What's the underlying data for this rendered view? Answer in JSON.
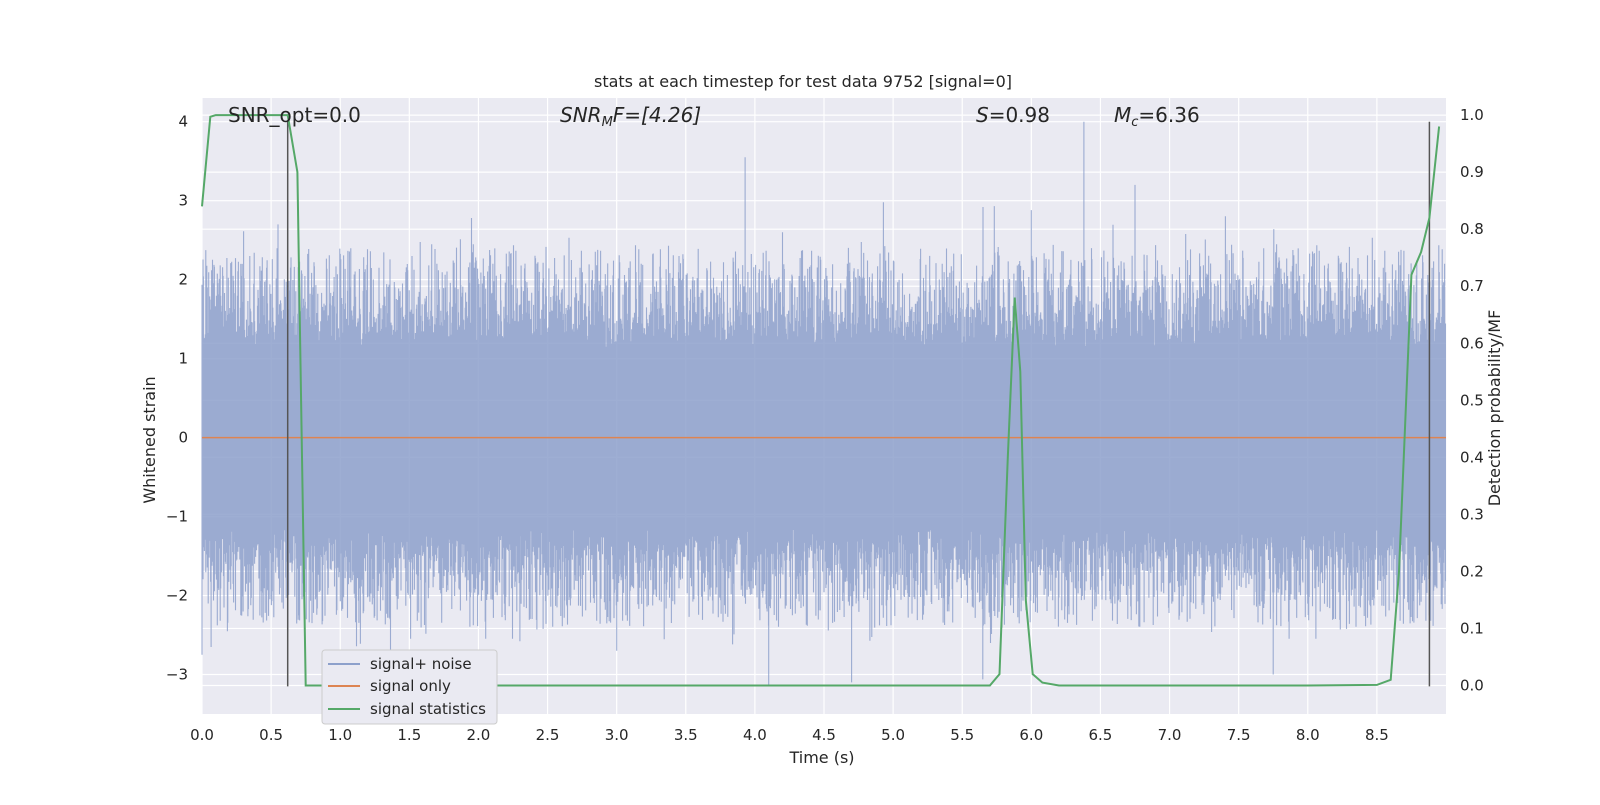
{
  "chart_data": {
    "type": "line",
    "title": "stats at each timestep for test data 9752 [signal=0]",
    "xlabel": "Time (s)",
    "ylabel_left": "Whitened strain",
    "ylabel_right": "Detection probability/MF",
    "xlim": [
      0.0,
      9.0
    ],
    "ylim_left": [
      -3.5,
      4.3
    ],
    "ylim_right": [
      -0.05,
      1.03
    ],
    "x_ticks": [
      "0.0",
      "0.5",
      "1.0",
      "1.5",
      "2.0",
      "2.5",
      "3.0",
      "3.5",
      "4.0",
      "4.5",
      "5.0",
      "5.5",
      "6.0",
      "6.5",
      "7.0",
      "7.5",
      "8.0",
      "8.5"
    ],
    "x_tick_values": [
      0.0,
      0.5,
      1.0,
      1.5,
      2.0,
      2.5,
      3.0,
      3.5,
      4.0,
      4.5,
      5.0,
      5.5,
      6.0,
      6.5,
      7.0,
      7.5,
      8.0,
      8.5
    ],
    "y_ticks_left": [
      "4",
      "3",
      "2",
      "1",
      "0",
      "−1",
      "−2",
      "−3"
    ],
    "y_tick_values_left": [
      4,
      3,
      2,
      1,
      0,
      -1,
      -2,
      -3
    ],
    "y_ticks_right": [
      "1.0",
      "0.9",
      "0.8",
      "0.7",
      "0.6",
      "0.5",
      "0.4",
      "0.3",
      "0.2",
      "0.1",
      "0.0"
    ],
    "y_tick_values_right": [
      1.0,
      0.9,
      0.8,
      0.7,
      0.6,
      0.5,
      0.4,
      0.3,
      0.2,
      0.1,
      0.0
    ],
    "grid": true,
    "legend_position": "lower-left",
    "annotations": {
      "snr_opt": "SNR_opt=0.0",
      "snr_mf_main": "SNR",
      "snr_mf_sub": "M",
      "snr_mf_rest": "F=[4.26]",
      "s_main": "S",
      "s_rest": "=0.98",
      "mc_main": "M",
      "mc_sub": "c",
      "mc_rest": "=6.36"
    },
    "vlines": [
      0.62,
      8.88
    ],
    "series": [
      {
        "name": "signal+ noise",
        "axis": "left",
        "color": "#8da0cb",
        "note_style": "dense noise, approx amplitude",
        "spikes": [
          {
            "x": 0.0,
            "y": -2.75
          },
          {
            "x": 0.55,
            "y": 2.7
          },
          {
            "x": 0.62,
            "y": -2.45
          },
          {
            "x": 1.95,
            "y": 2.78
          },
          {
            "x": 2.3,
            "y": -2.58
          },
          {
            "x": 3.0,
            "y": -2.7
          },
          {
            "x": 4.1,
            "y": -3.15
          },
          {
            "x": 4.2,
            "y": 2.6
          },
          {
            "x": 4.7,
            "y": -3.1
          },
          {
            "x": 4.93,
            "y": 2.98
          },
          {
            "x": 5.65,
            "y": 2.92
          },
          {
            "x": 6.0,
            "y": 2.88
          },
          {
            "x": 6.38,
            "y": 4.0
          },
          {
            "x": 6.75,
            "y": 3.2
          },
          {
            "x": 7.75,
            "y": -3.0
          },
          {
            "x": 8.8,
            "y": -1.35
          }
        ]
      },
      {
        "name": "signal only",
        "axis": "left",
        "color": "#dd8452",
        "x": [
          0.0,
          9.0
        ],
        "y": [
          0.0,
          0.0
        ]
      },
      {
        "name": "signal statistics",
        "axis": "right",
        "color": "#55a868",
        "x": [
          0.0,
          0.06,
          0.1,
          0.2,
          0.4,
          0.6,
          0.62,
          0.69,
          0.75,
          0.8,
          1.0,
          2.0,
          3.0,
          4.0,
          5.0,
          5.7,
          5.77,
          5.83,
          5.88,
          5.92,
          5.96,
          6.01,
          6.08,
          6.2,
          6.5,
          7.0,
          8.0,
          8.5,
          8.6,
          8.66,
          8.75,
          8.82,
          8.88,
          8.95
        ],
        "y": [
          0.84,
          0.997,
          1.0,
          1.0,
          1.0,
          1.0,
          1.0,
          0.9,
          0.0,
          0.0,
          0.0,
          0.0,
          0.0,
          0.0,
          0.0,
          0.0,
          0.02,
          0.4,
          0.68,
          0.55,
          0.15,
          0.02,
          0.005,
          0.0,
          0.0,
          0.0,
          0.0,
          0.001,
          0.01,
          0.2,
          0.72,
          0.76,
          0.82,
          0.98
        ]
      }
    ]
  }
}
